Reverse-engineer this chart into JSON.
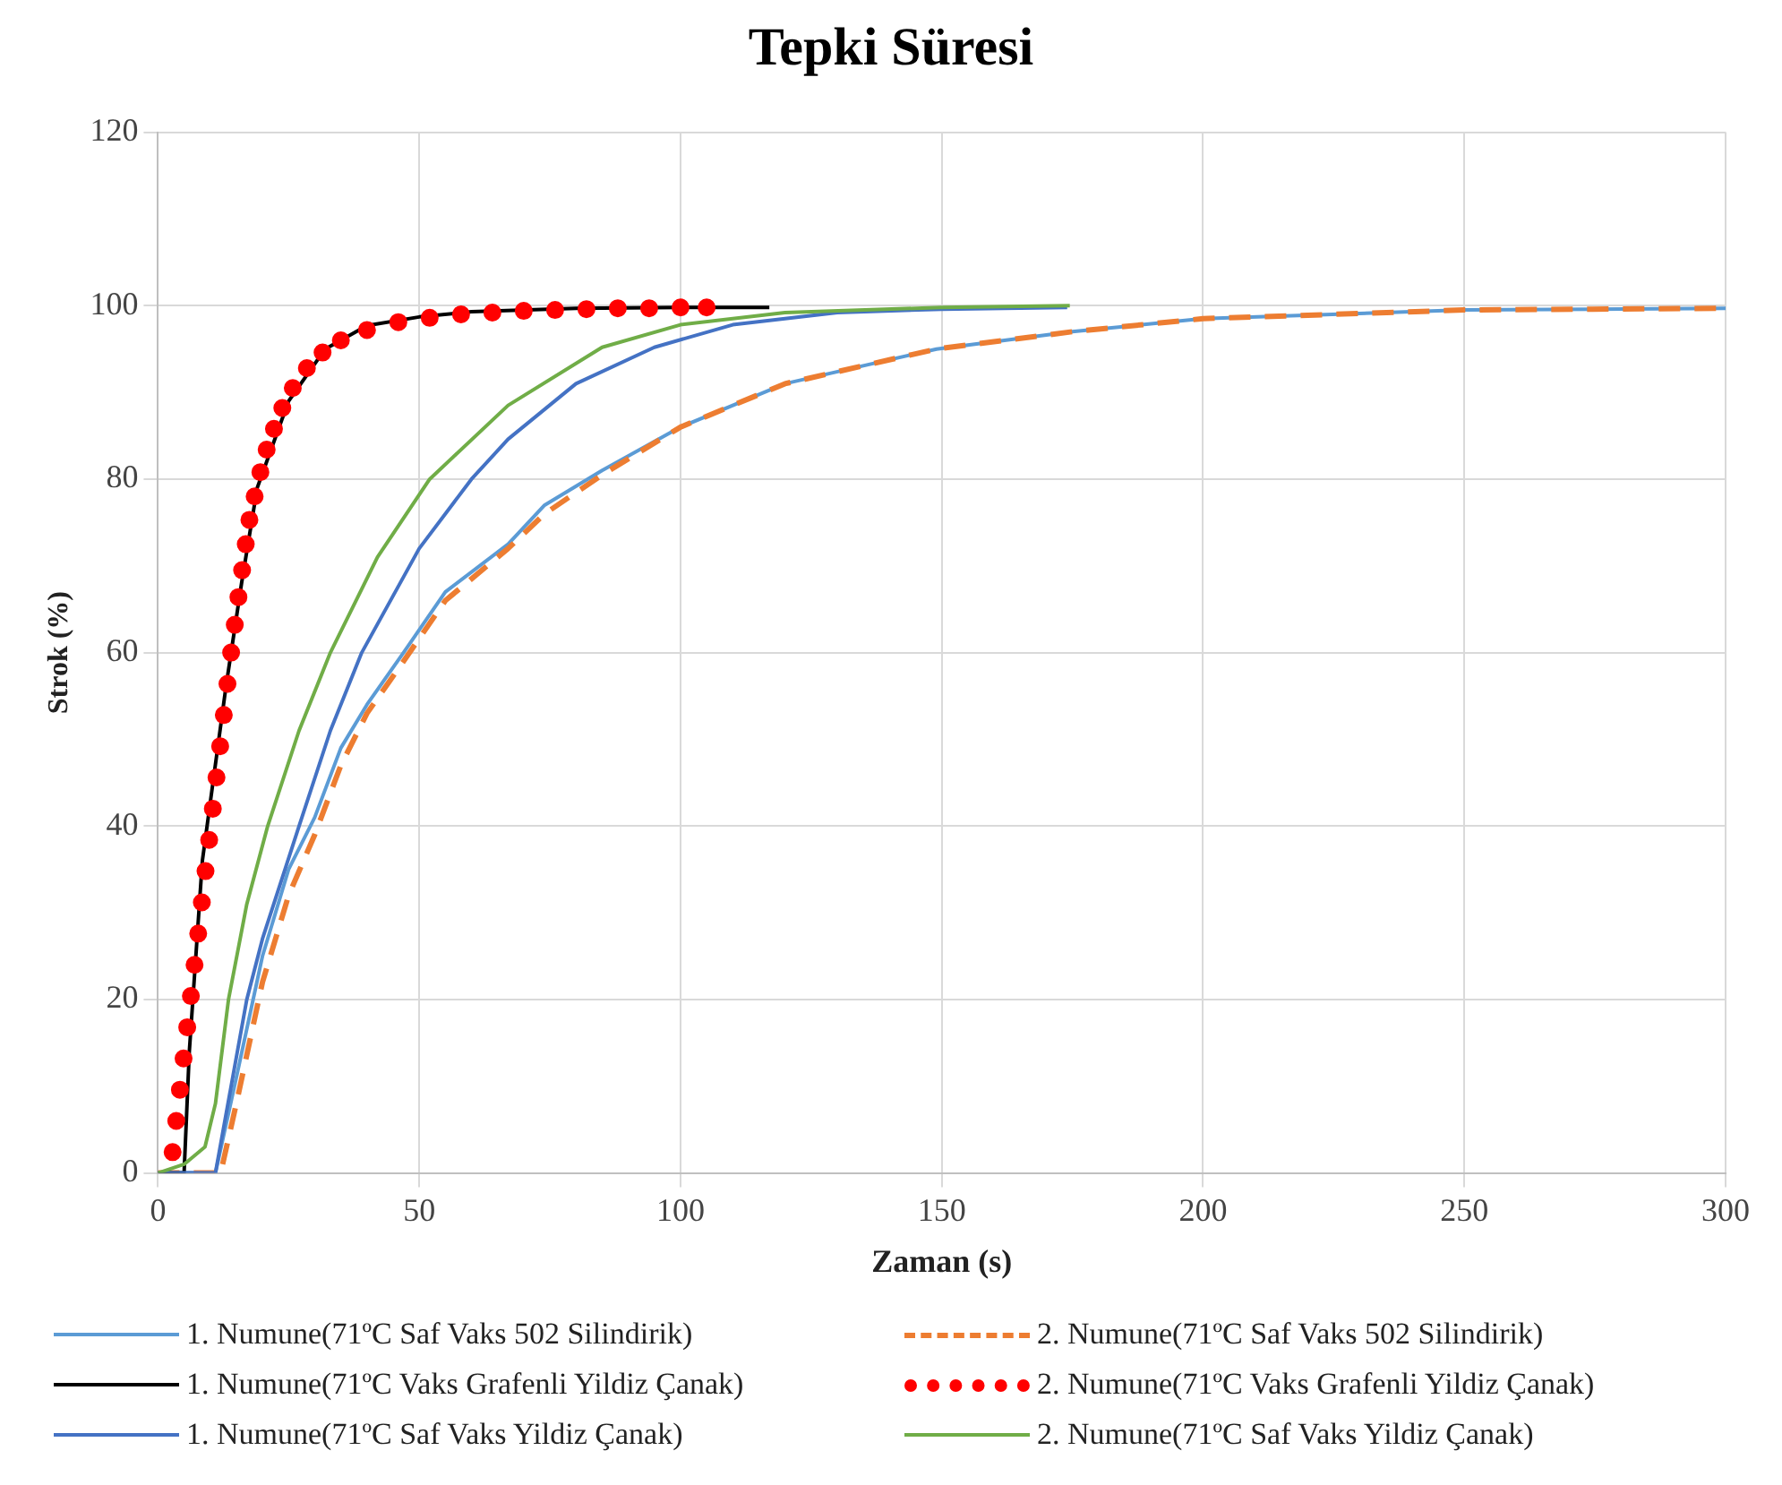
{
  "chart_data": {
    "type": "line",
    "title": "Tepki Süresi",
    "xlabel": "Zaman (s)",
    "ylabel": "Strok (%)",
    "xlim": [
      0,
      300
    ],
    "xticks": [
      0,
      50,
      100,
      150,
      200,
      250,
      300
    ],
    "ylim": [
      0,
      120
    ],
    "yticks": [
      0,
      20,
      40,
      60,
      80,
      100,
      120
    ],
    "grid": true,
    "legend": "bottom",
    "marker": "none",
    "series": [
      {
        "name": "1. Numune(71ºC Saf Vaks 502 Silindirik)",
        "color": "#5b9bd5",
        "line_style": "solid",
        "x": [
          0,
          10,
          11,
          15,
          20,
          25,
          30,
          35,
          40,
          47,
          55,
          67,
          74,
          85,
          100,
          120,
          149,
          175,
          200,
          250,
          300
        ],
        "values": [
          0,
          0,
          0,
          11,
          25,
          35,
          41,
          49,
          54,
          60,
          67,
          72.5,
          77,
          81,
          86,
          91,
          95,
          97,
          98.5,
          99.5,
          99.7
        ]
      },
      {
        "name": "2. Numune(71ºC Saf Vaks 502 Silindirik)",
        "color": "#ed7d31",
        "line_style": "dashed",
        "x": [
          0,
          10,
          12,
          15,
          20,
          25,
          30,
          35,
          40,
          47,
          55,
          67,
          74,
          85,
          100,
          120,
          149,
          175,
          200,
          250,
          300
        ],
        "values": [
          0,
          0,
          0,
          8,
          22,
          32,
          39,
          47,
          53,
          59,
          66,
          72,
          76,
          80.5,
          86,
          91,
          95,
          97,
          98.5,
          99.5,
          99.7
        ]
      },
      {
        "name": "1. Numune(71ºC Vaks Grafenli Yildiz Çanak)",
        "color": "#000000",
        "line_style": "solid",
        "x": [
          0,
          5,
          6,
          8.5,
          13,
          16,
          19,
          25,
          32,
          40,
          50,
          60,
          80,
          100,
          117
        ],
        "values": [
          0,
          0,
          14,
          36,
          56,
          68,
          79,
          89,
          95,
          97.7,
          98.7,
          99.3,
          99.7,
          99.8,
          99.8
        ]
      },
      {
        "name": "2. Numune(71ºC Vaks Grafenli Yildiz Çanak)",
        "color": "#ff0000",
        "type": "scatter",
        "marker": "circle",
        "x": [
          2.8,
          3.5,
          4.2,
          4.9,
          5.6,
          6.3,
          7,
          7.7,
          8.4,
          9.1,
          9.8,
          10.5,
          11.2,
          11.9,
          12.6,
          13.3,
          14,
          14.7,
          15.4,
          16.1,
          16.8,
          17.5,
          18.5,
          19.6,
          20.8,
          22.2,
          23.8,
          25.8,
          28.5,
          31.5,
          35,
          40,
          46,
          52,
          58,
          64,
          70,
          76,
          82,
          88,
          94,
          100,
          105
        ],
        "values": [
          2.4,
          6,
          9.6,
          13.2,
          16.8,
          20.4,
          24,
          27.6,
          31.2,
          34.8,
          38.4,
          42,
          45.6,
          49.2,
          52.8,
          56.4,
          60,
          63.2,
          66.4,
          69.5,
          72.5,
          75.3,
          78,
          80.8,
          83.4,
          85.8,
          88.2,
          90.5,
          92.8,
          94.6,
          96,
          97.2,
          98.1,
          98.6,
          99,
          99.2,
          99.4,
          99.5,
          99.6,
          99.7,
          99.7,
          99.8,
          99.8
        ]
      },
      {
        "name": "1. Numune(71ºC Saf Vaks Yildiz Çanak)",
        "color": "#4472c4",
        "line_style": "solid",
        "x": [
          0,
          10,
          11,
          14,
          17,
          20,
          27,
          33,
          39,
          50,
          60,
          67,
          80,
          95,
          110,
          130,
          150,
          174
        ],
        "values": [
          0,
          0,
          0,
          10,
          20,
          27,
          40,
          51,
          60,
          72,
          80,
          84.6,
          91,
          95.2,
          97.8,
          99.2,
          99.6,
          99.8
        ]
      },
      {
        "name": "2. Numune(71ºC Saf Vaks Yildiz Çanak)",
        "color": "#70ad47",
        "line_style": "solid",
        "x": [
          0,
          5,
          9,
          11,
          13.5,
          17,
          21,
          27,
          33,
          42,
          52,
          67,
          85,
          100,
          120,
          150,
          174.5
        ],
        "values": [
          0,
          1,
          3,
          8,
          20,
          31,
          40,
          51,
          60,
          71,
          80,
          88.5,
          95.2,
          97.8,
          99.2,
          99.8,
          100
        ]
      }
    ]
  }
}
